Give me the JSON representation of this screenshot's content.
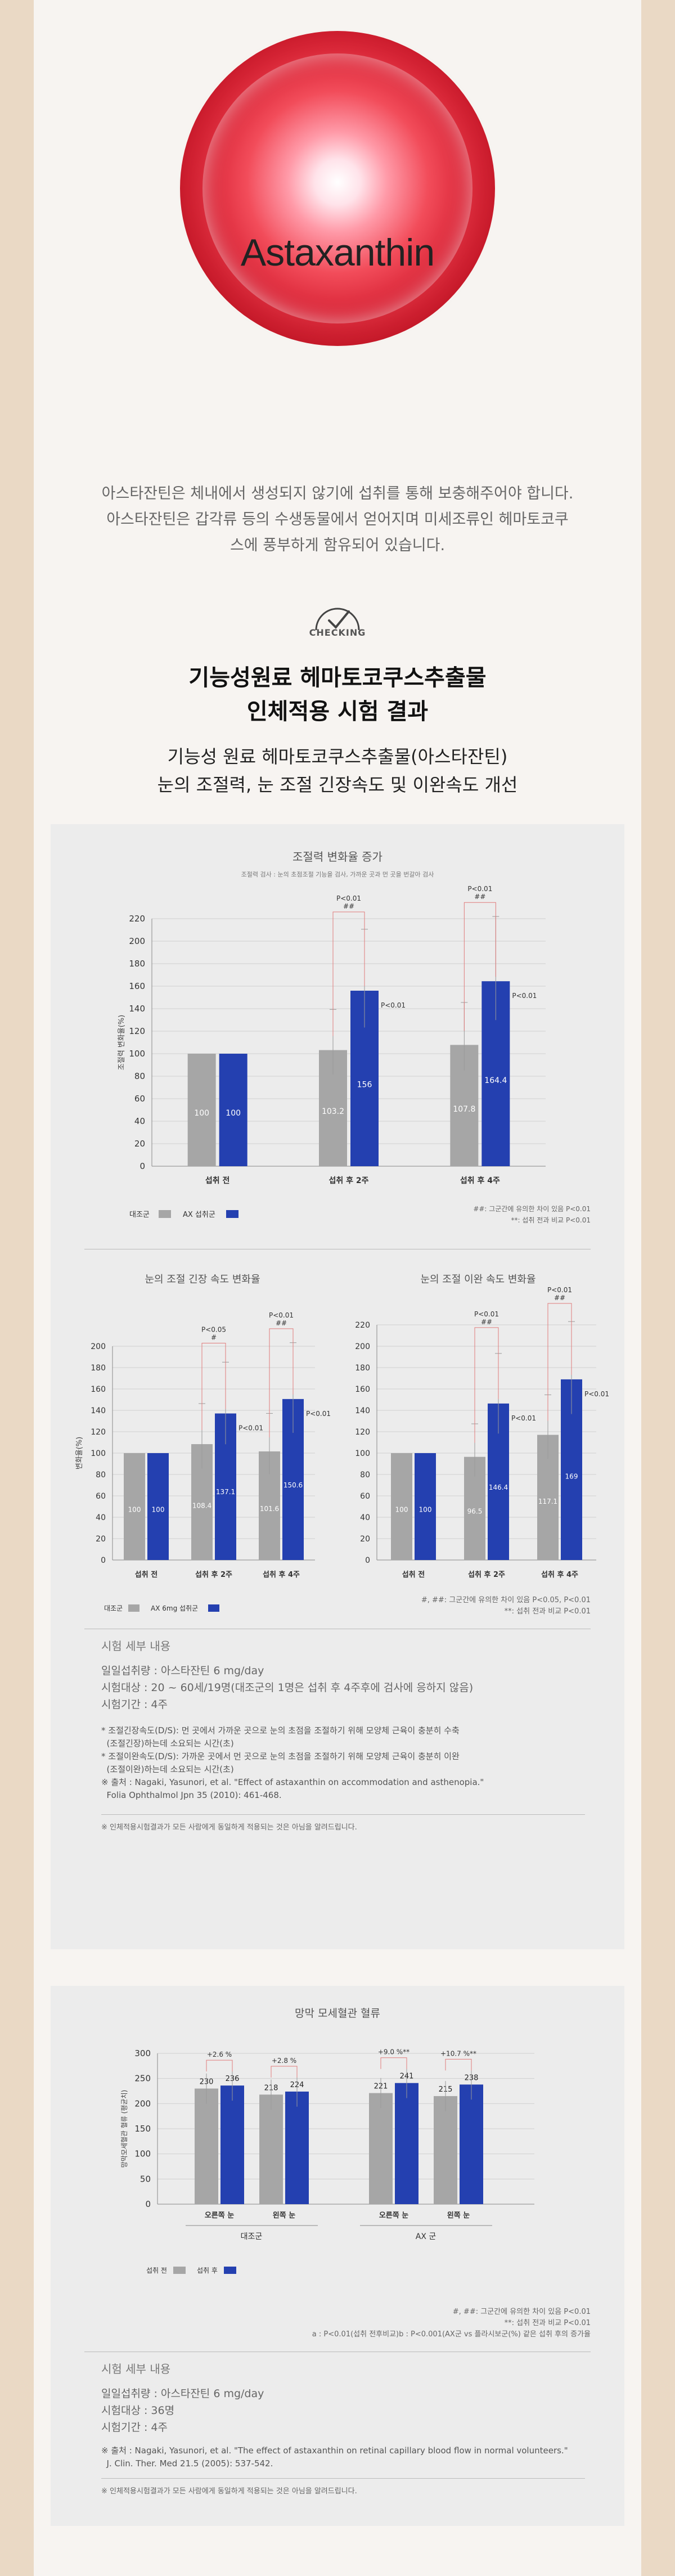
{
  "hero": {
    "title": "Astaxanthin",
    "description": "아스타잔틴은 체내에서 생성되지 않기에 섭취를 통해 보충해주어야 합니다. 아스타잔틴은 갑각류 등의 수생동물에서 얻어지며 미세조류인 헤마토코쿠스에 풍부하게 함유되어 있습니다."
  },
  "checking": {
    "label": "CHECKING",
    "title_line1": "기능성원료 헤마토코쿠스추출물",
    "title_line2": "인체적용 시험 결과",
    "subtitle_line1": "기능성 원료 헤마토코쿠스추출물(아스타잔틴)",
    "subtitle_line2": "눈의 조절력, 눈 조절 긴장속도 및 이완속도 개선"
  },
  "colors": {
    "control": "#a6a6a6",
    "treatment": "#2440b0",
    "bracket": "#e07b7b"
  },
  "chart_data": [
    {
      "type": "bar",
      "title": "조절력 변화율 증가",
      "subtitle": "조절력 검사 : 눈의 초점조절 기능을 검사, 가까운 곳과 먼 곳을 번갈아 검사",
      "ylabel": "조절력 변화율(%)",
      "ylim": [
        0,
        220
      ],
      "yticks": [
        0,
        20,
        40,
        60,
        80,
        100,
        120,
        140,
        160,
        180,
        200,
        220
      ],
      "categories": [
        "섭취 전",
        "섭취 후 2주",
        "섭취 후 4주"
      ],
      "series": [
        {
          "name": "대조군",
          "values": [
            100,
            103.2,
            107.8
          ],
          "labels": [
            "100",
            "103.2",
            "107.8"
          ]
        },
        {
          "name": "AX 섭취군",
          "values": [
            100,
            156,
            164.4
          ],
          "labels": [
            "100",
            "156",
            "164.4"
          ]
        }
      ],
      "annotations": [
        {
          "category": 1,
          "top": "P<0.01",
          "mark": "##",
          "side": "P<0.01"
        },
        {
          "category": 2,
          "top": "P<0.01",
          "mark": "##",
          "side": "P<0.01"
        }
      ],
      "legend": [
        "대조군",
        "AX 섭취군"
      ],
      "footnote1": "##: 그군간에 유의한 차이 있음 P<0.01",
      "footnote2": "**: 섭취 전과 비교 P<0.01"
    },
    {
      "type": "bar",
      "title": "눈의 조절 긴장 속도 변화율",
      "ylabel": "변화율(%)",
      "ylim": [
        0,
        200
      ],
      "yticks": [
        0,
        20,
        40,
        60,
        80,
        100,
        120,
        140,
        160,
        180,
        200
      ],
      "categories": [
        "섭취 전",
        "섭취 후 2주",
        "섭취 후 4주"
      ],
      "series": [
        {
          "name": "대조군",
          "values": [
            100,
            108.4,
            101.6
          ],
          "labels": [
            "100",
            "108.4",
            "101.6"
          ]
        },
        {
          "name": "AX 6mg 섭취군",
          "values": [
            100,
            137.1,
            150.6
          ],
          "labels": [
            "100",
            "137.1",
            "150.6"
          ]
        }
      ],
      "annotations": [
        {
          "category": 1,
          "top": "P<0.05",
          "mark": "#",
          "side": "P<0.01"
        },
        {
          "category": 2,
          "top": "P<0.01",
          "mark": "##",
          "side": "P<0.01"
        }
      ]
    },
    {
      "type": "bar",
      "title": "눈의 조절 이완 속도 변화율",
      "ylim": [
        0,
        220
      ],
      "yticks": [
        0,
        20,
        40,
        60,
        80,
        100,
        120,
        140,
        160,
        180,
        200,
        220
      ],
      "categories": [
        "섭취 전",
        "섭취 후 2주",
        "섭취 후 4주"
      ],
      "series": [
        {
          "name": "대조군",
          "values": [
            100,
            96.5,
            117.1
          ],
          "labels": [
            "100",
            "96.5",
            "117.1"
          ]
        },
        {
          "name": "AX 6mg 섭취군",
          "values": [
            100,
            146.4,
            169
          ],
          "labels": [
            "100",
            "146.4",
            "169"
          ]
        }
      ],
      "annotations": [
        {
          "category": 1,
          "top": "P<0.01",
          "mark": "##",
          "side": "P<0.01"
        },
        {
          "category": 2,
          "top": "P<0.01",
          "mark": "##",
          "side": "P<0.01"
        }
      ]
    },
    {
      "type": "bar",
      "title": "망막 모세혈관 혈류",
      "ylabel": "망막모세혈관 혈류 (평균치)",
      "ylim": [
        0,
        300
      ],
      "yticks": [
        0,
        50,
        100,
        150,
        200,
        250,
        300
      ],
      "groups": [
        "대조군",
        "AX 군"
      ],
      "categories": [
        "오른쪽 눈",
        "왼쪽 눈",
        "오른쪽 눈",
        "왼쪽 눈"
      ],
      "series": [
        {
          "name": "섭취 전",
          "values": [
            230,
            218,
            221,
            215
          ],
          "labels": [
            "230",
            "218",
            "221",
            "215"
          ]
        },
        {
          "name": "섭취 후",
          "values": [
            236,
            224,
            241,
            238
          ],
          "labels": [
            "236",
            "224",
            "241",
            "238"
          ]
        }
      ],
      "annotations": [
        "+2.6 %",
        "+2.8 %",
        "+9.0 %**",
        "+10.7 %**"
      ],
      "legend": [
        "섭취 전",
        "섭취 후"
      ],
      "footnote1": "#, ##: 그군간에 유의한 차이 있음 P<0.01",
      "footnote2": "**: 섭취 전과 비교 P<0.01",
      "footnote3": "a : P<0.01(섭취 전후비교)b : P<0.001(AX군 vs 플라시보군(%) 같은 섭취 후의 증가율"
    }
  ],
  "panel1": {
    "legend2": [
      "대조군",
      "AX 6mg 섭취군"
    ],
    "footnote_a": "#, ##: 그군간에 유의한 차이 있음 P<0.05, P<0.01",
    "footnote_b": "**: 섭취 전과 비교 P<0.01",
    "detail_title": "시험 세부 내용",
    "detail_lines": [
      "일일섭취량 : 아스타잔틴 6 mg/day",
      "시험대상 : 20 ~ 60세/19명(대조군의 1명은 섭취 후 4주후에 검사에 응하지 않음)",
      "시험기간 : 4주"
    ],
    "notes": [
      "* 조절긴장속도(D/S): 먼 곳에서 가까운 곳으로 눈의 초점을 조절하기 위해 모양체 근육이 충분히 수축",
      "  (조절긴장)하는데 소요되는 시간(초)",
      "* 조절이완속도(D/S): 가까운 곳에서 먼 곳으로 눈의 초점을 조절하기 위해 모양체 근육이 충분히 이완",
      "  (조절이완)하는데 소요되는 시간(초)",
      "※ 출처 : Nagaki, Yasunori, et al. \"Effect of astaxanthin on accommodation and asthenopia.\"",
      "  Folia Ophthalmol Jpn 35 (2010): 461-468."
    ],
    "disclaimer": "※ 인체적용시험결과가 모든 사람에게 동일하게 적용되는 것은 아님을 알려드립니다."
  },
  "panel2": {
    "detail_title": "시험 세부 내용",
    "detail_lines": [
      "일일섭취량 : 아스타잔틴 6 mg/day",
      "시험대상 : 36명",
      "시험기간 : 4주"
    ],
    "notes": [
      "※ 출처 : Nagaki, Yasunori, et al. \"The effect of astaxanthin on retinal capillary blood flow in normal volunteers.\"",
      "  J. Clin. Ther. Med 21.5 (2005): 537-542."
    ],
    "disclaimer": "※ 인체적용시험결과가 모든 사람에게 동일하게 적용되는 것은 아님을 알려드립니다."
  }
}
